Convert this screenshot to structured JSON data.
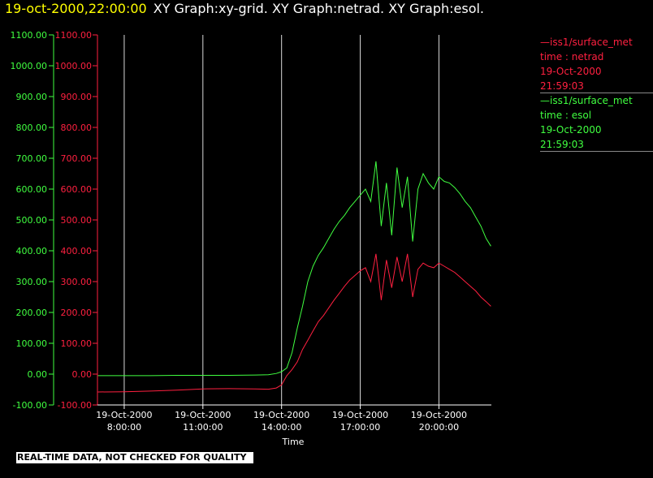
{
  "header": {
    "datetime": "19-oct-2000,22:00:00",
    "graphs": "XY Graph:xy-grid.  XY Graph:netrad.  XY Graph:esol."
  },
  "legend": [
    {
      "line1": "—iss1/surface_met",
      "line2": "time : netrad",
      "line3": "19-Oct-2000",
      "line4": "21:59:03",
      "color": "#ff2040"
    },
    {
      "line1": "—iss1/surface_met",
      "line2": "time : esol",
      "line3": "19-Oct-2000",
      "line4": "21:59:03",
      "color": "#40ff40"
    }
  ],
  "notice": "REAL-TIME DATA, NOT CHECKED FOR QUALITY",
  "chart_data": {
    "type": "line",
    "title": "",
    "xlabel": "Time",
    "ylabel": "",
    "x_unit": "hours of 19-Oct-2000",
    "xlim": [
      6.98,
      22.0
    ],
    "ylim": [
      -100,
      1100
    ],
    "yticks": [
      -100,
      0,
      100,
      200,
      300,
      400,
      500,
      600,
      700,
      800,
      900,
      1000,
      1100
    ],
    "ytick_labels": [
      "-100.00",
      "0.00",
      "100.00",
      "200.00",
      "300.00",
      "400.00",
      "500.00",
      "600.00",
      "700.00",
      "800.00",
      "900.00",
      "1000.00",
      "1100.00"
    ],
    "xticks": [
      8,
      11,
      14,
      17,
      20
    ],
    "xtick_labels": [
      [
        "19-Oct-2000",
        "8:00:00"
      ],
      [
        "19-Oct-2000",
        "11:00:00"
      ],
      [
        "19-Oct-2000",
        "14:00:00"
      ],
      [
        "19-Oct-2000",
        "17:00:00"
      ],
      [
        "19-Oct-2000",
        "20:00:00"
      ]
    ],
    "grid": "vertical lines at x ticks",
    "series": [
      {
        "name": "iss1/surface_met time : esol",
        "color": "#40ff40",
        "x": [
          7.0,
          8.0,
          9.0,
          10.0,
          11.0,
          12.0,
          13.0,
          13.5,
          13.8,
          14.0,
          14.2,
          14.4,
          14.6,
          14.8,
          15.0,
          15.2,
          15.4,
          15.6,
          15.8,
          16.0,
          16.2,
          16.4,
          16.6,
          16.8,
          17.0,
          17.2,
          17.4,
          17.6,
          17.8,
          18.0,
          18.2,
          18.4,
          18.6,
          18.8,
          19.0,
          19.2,
          19.4,
          19.6,
          19.8,
          20.0,
          20.2,
          20.4,
          20.6,
          20.8,
          21.0,
          21.2,
          21.4,
          21.6,
          21.8,
          21.98
        ],
        "y": [
          -5,
          -5,
          -5,
          -4,
          -4,
          -4,
          -3,
          -2,
          2,
          8,
          20,
          70,
          150,
          220,
          300,
          350,
          385,
          410,
          440,
          470,
          495,
          515,
          540,
          560,
          580,
          600,
          560,
          690,
          480,
          620,
          450,
          670,
          540,
          640,
          430,
          600,
          650,
          620,
          600,
          640,
          625,
          620,
          605,
          585,
          560,
          540,
          510,
          480,
          440,
          415
        ]
      },
      {
        "name": "iss1/surface_met time : netrad",
        "color": "#ff2040",
        "x": [
          7.0,
          8.0,
          9.0,
          10.0,
          11.0,
          12.0,
          13.0,
          13.5,
          13.8,
          14.0,
          14.2,
          14.4,
          14.6,
          14.8,
          15.0,
          15.2,
          15.4,
          15.6,
          15.8,
          16.0,
          16.2,
          16.4,
          16.6,
          16.8,
          17.0,
          17.2,
          17.4,
          17.6,
          17.8,
          18.0,
          18.2,
          18.4,
          18.6,
          18.8,
          19.0,
          19.2,
          19.4,
          19.6,
          19.8,
          20.0,
          20.2,
          20.4,
          20.6,
          20.8,
          21.0,
          21.2,
          21.4,
          21.6,
          21.8,
          21.98
        ],
        "y": [
          -58,
          -57,
          -55,
          -52,
          -48,
          -47,
          -48,
          -49,
          -45,
          -35,
          -5,
          15,
          40,
          80,
          110,
          140,
          170,
          190,
          215,
          240,
          262,
          285,
          305,
          320,
          335,
          345,
          300,
          390,
          240,
          370,
          280,
          380,
          300,
          390,
          250,
          340,
          360,
          350,
          345,
          360,
          350,
          340,
          330,
          315,
          300,
          285,
          270,
          250,
          235,
          220
        ]
      }
    ]
  }
}
